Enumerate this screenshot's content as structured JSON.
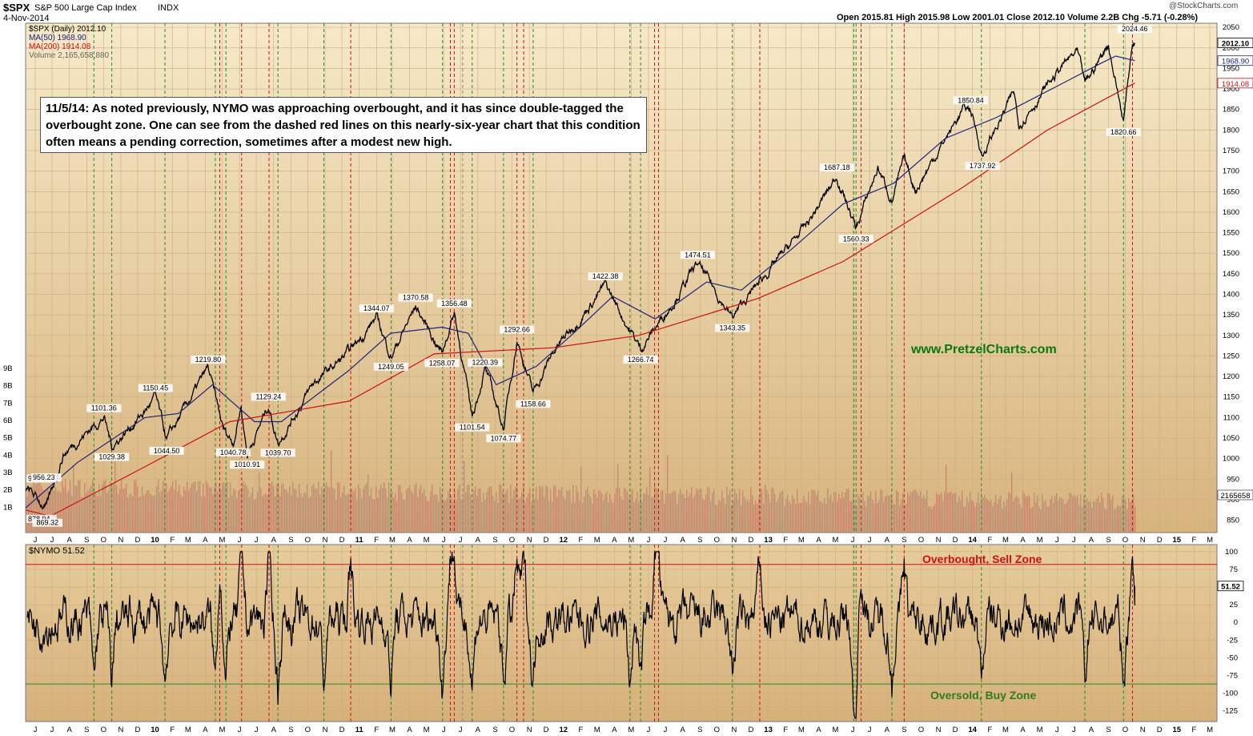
{
  "header": {
    "symbol": "$SPX",
    "name": "S&P 500 Large Cap Index",
    "exchange": "INDX",
    "date": "4-Nov-2014",
    "source": "@StockCharts.com",
    "quote_line": "Open 2015.81   High 2015.98   Low 2001.01   Close 2012.10   Volume 2.2B   Chg -5.71 (-0.28%)"
  },
  "legend": {
    "price": "$SPX (Daily) 2012.10",
    "ma50": "MA(50) 1968.90",
    "ma200": "MA(200) 1914.08",
    "volume": "Volume 2,165,658,880",
    "nymo": "$NYMO 51.52"
  },
  "annotation": "11/5/14:  As noted previously, NYMO was approaching overbought, and it has since double-tagged the overbought zone.  One can see from the dashed red lines on this nearly-six-year chart that this condition often means a pending correction, sometimes after a modest new high.",
  "watermark": "www.PretzelCharts.com",
  "zones": {
    "overbought": "Overbought, Sell Zone",
    "oversold": "Oversold, Buy Zone"
  },
  "colors": {
    "bg_top": "#f5e7c6",
    "bg_bottom": "#d6b27c",
    "price": "#000000",
    "ma50": "#1a237e",
    "ma200": "#cc1111",
    "volume": "#c97a6a",
    "green_line": "#2e8b2e",
    "red_line": "#d01010",
    "grid": "#c9ad80"
  },
  "chart_data": [
    {
      "type": "line",
      "title": "$SPX (Daily) 2012.10",
      "y_ticks": [
        850,
        900,
        950,
        1000,
        1050,
        1100,
        1150,
        1200,
        1250,
        1300,
        1350,
        1400,
        1450,
        1500,
        1550,
        1600,
        1650,
        1700,
        1750,
        1800,
        1850,
        1900,
        1950,
        2000,
        2050
      ],
      "ylim": [
        820,
        2060
      ],
      "x_labels": [
        "J",
        "J",
        "A",
        "S",
        "O",
        "N",
        "D",
        "10",
        "F",
        "M",
        "A",
        "M",
        "J",
        "J",
        "A",
        "S",
        "O",
        "N",
        "D",
        "11",
        "F",
        "M",
        "A",
        "M",
        "J",
        "J",
        "A",
        "S",
        "O",
        "N",
        "D",
        "12",
        "F",
        "M",
        "A",
        "M",
        "J",
        "J",
        "A",
        "S",
        "O",
        "N",
        "D",
        "13",
        "F",
        "M",
        "A",
        "M",
        "J",
        "J",
        "A",
        "S",
        "O",
        "N",
        "D",
        "14",
        "F",
        "M",
        "A",
        "M",
        "J",
        "J",
        "A",
        "S",
        "O",
        "N",
        "D",
        "15",
        "F",
        "M"
      ],
      "x_start": "2009-06-01",
      "x_end": "2015-03-31",
      "series": [
        {
          "name": "$SPX",
          "points": [
            [
              "2009-06-01",
              930.17
            ],
            [
              "2009-07-08",
              878.94
            ],
            [
              "2009-08-07",
              1010
            ],
            [
              "2009-09-23",
              1071
            ],
            [
              "2009-10-19",
              1101.36
            ],
            [
              "2009-11-02",
              1029.38
            ],
            [
              "2009-12-31",
              1115
            ],
            [
              "2010-01-19",
              1150.45
            ],
            [
              "2010-02-08",
              1044.5
            ],
            [
              "2010-04-23",
              1219.8
            ],
            [
              "2010-05-20",
              1071
            ],
            [
              "2010-06-07",
              1040.78
            ],
            [
              "2010-06-21",
              1129
            ],
            [
              "2010-07-02",
              1010.91
            ],
            [
              "2010-08-09",
              1129.24
            ],
            [
              "2010-08-26",
              1039.7
            ],
            [
              "2010-10-29",
              1183
            ],
            [
              "2010-12-31",
              1258
            ],
            [
              "2011-02-18",
              1344.07
            ],
            [
              "2011-03-16",
              1249.05
            ],
            [
              "2011-04-29",
              1370.58
            ],
            [
              "2011-06-15",
              1258.07
            ],
            [
              "2011-07-07",
              1356.48
            ],
            [
              "2011-08-08",
              1101.54
            ],
            [
              "2011-08-31",
              1220.39
            ],
            [
              "2011-10-03",
              1074.77
            ],
            [
              "2011-10-27",
              1292.66
            ],
            [
              "2011-11-25",
              1158.66
            ],
            [
              "2011-12-30",
              1258
            ],
            [
              "2012-04-02",
              1422.38
            ],
            [
              "2012-06-04",
              1266.74
            ],
            [
              "2012-07-31",
              1380
            ],
            [
              "2012-09-14",
              1474.51
            ],
            [
              "2012-11-15",
              1343.35
            ],
            [
              "2012-12-31",
              1426
            ],
            [
              "2013-03-28",
              1569
            ],
            [
              "2013-05-21",
              1687.18
            ],
            [
              "2013-06-24",
              1560.33
            ],
            [
              "2013-08-02",
              1709
            ],
            [
              "2013-08-27",
              1630
            ],
            [
              "2013-09-18",
              1725
            ],
            [
              "2013-10-08",
              1655
            ],
            [
              "2013-12-31",
              1848
            ],
            [
              "2014-01-15",
              1850.84
            ],
            [
              "2014-02-05",
              1737.92
            ],
            [
              "2014-04-02",
              1890
            ],
            [
              "2014-04-11",
              1815
            ],
            [
              "2014-06-30",
              1960
            ],
            [
              "2014-07-24",
              1988
            ],
            [
              "2014-08-07",
              1909
            ],
            [
              "2014-09-18",
              2011
            ],
            [
              "2014-10-15",
              1820.66
            ],
            [
              "2014-10-31",
              2018
            ],
            [
              "2014-11-04",
              2012.1
            ]
          ]
        },
        {
          "name": "MA(50)",
          "points": [
            [
              "2009-06-01",
              880
            ],
            [
              "2009-09-01",
              990
            ],
            [
              "2009-12-31",
              1100
            ],
            [
              "2010-03-01",
              1110
            ],
            [
              "2010-05-01",
              1180
            ],
            [
              "2010-07-15",
              1090
            ],
            [
              "2010-09-01",
              1090
            ],
            [
              "2010-12-31",
              1215
            ],
            [
              "2011-03-15",
              1305
            ],
            [
              "2011-06-15",
              1320
            ],
            [
              "2011-08-01",
              1305
            ],
            [
              "2011-09-20",
              1180
            ],
            [
              "2011-12-01",
              1225
            ],
            [
              "2012-02-01",
              1300
            ],
            [
              "2012-04-15",
              1395
            ],
            [
              "2012-06-30",
              1340
            ],
            [
              "2012-09-30",
              1430
            ],
            [
              "2012-12-01",
              1410
            ],
            [
              "2013-03-01",
              1510
            ],
            [
              "2013-06-01",
              1620
            ],
            [
              "2013-08-30",
              1670
            ],
            [
              "2013-12-01",
              1780
            ],
            [
              "2014-03-01",
              1830
            ],
            [
              "2014-06-30",
              1915
            ],
            [
              "2014-09-01",
              1960
            ],
            [
              "2014-10-01",
              1980
            ],
            [
              "2014-11-04",
              1968.9
            ]
          ]
        },
        {
          "name": "MA(200)",
          "points": [
            [
              "2009-06-01",
              875
            ],
            [
              "2009-07-15",
              860
            ],
            [
              "2009-12-31",
              980
            ],
            [
              "2010-06-01",
              1090
            ],
            [
              "2010-12-31",
              1140
            ],
            [
              "2011-06-01",
              1255
            ],
            [
              "2011-12-31",
              1270
            ],
            [
              "2012-06-01",
              1300
            ],
            [
              "2012-12-31",
              1390
            ],
            [
              "2013-06-01",
              1480
            ],
            [
              "2013-12-31",
              1660
            ],
            [
              "2014-06-01",
              1800
            ],
            [
              "2014-11-04",
              1914.08
            ]
          ]
        }
      ],
      "volume_series": {
        "name": "Volume",
        "axis_labels": [
          "1B",
          "2B",
          "3B",
          "4B",
          "5B",
          "6B",
          "7B",
          "8B",
          "9B"
        ],
        "last": "2165658"
      },
      "annotations": [
        "930.17",
        "956.23",
        "878.94",
        "869.32",
        "1101.36",
        "1029.38",
        "1150.45",
        "1044.50",
        "1219.80",
        "1040.78",
        "1010.91",
        "1129.24",
        "1039.70",
        "1344.07",
        "1249.05",
        "1370.58",
        "1258.07",
        "1356.48",
        "1101.54",
        "1220.39",
        "1074.77",
        "1292.66",
        "1158.66",
        "1422.38",
        "1266.74",
        "1474.51",
        "1343.35",
        "1687.18",
        "1560.33",
        "1850.84",
        "1737.92",
        "2024.46",
        "1820.66"
      ],
      "price_tags": [
        "2012.10",
        "1968.90",
        "1914.08",
        "2165658"
      ],
      "grid": true
    },
    {
      "type": "line",
      "title": "$NYMO 51.52",
      "y_ticks": [
        -125,
        -100,
        -75,
        -50,
        -25,
        0,
        25,
        50,
        75,
        100
      ],
      "ylim": [
        -140,
        110
      ],
      "overbought_level": 82,
      "oversold_level": -87,
      "last_tag": "51.52",
      "series": [
        {
          "name": "$NYMO",
          "values_note": "oscillator",
          "last": 51.52
        }
      ],
      "grid": true
    }
  ],
  "vertical_markers": {
    "green": [
      "2009-10-01",
      "2009-11-02",
      "2010-02-05",
      "2010-05-06",
      "2010-05-25",
      "2010-08-26",
      "2010-11-16",
      "2011-03-16",
      "2011-06-16",
      "2011-08-08",
      "2011-10-03",
      "2011-11-25",
      "2012-05-16",
      "2012-06-04",
      "2012-11-15",
      "2013-06-20",
      "2013-06-24",
      "2013-08-27",
      "2014-02-03",
      "2014-08-07",
      "2014-10-15"
    ],
    "red": [
      "2010-05-14",
      "2010-06-22",
      "2010-08-10",
      "2011-01-03",
      "2011-06-30",
      "2011-07-07",
      "2011-10-27",
      "2011-11-08",
      "2012-06-29",
      "2012-07-06",
      "2013-01-03",
      "2013-07-03",
      "2013-09-18",
      "2014-10-31"
    ],
    "gray": [
      "2011-07-22"
    ]
  }
}
